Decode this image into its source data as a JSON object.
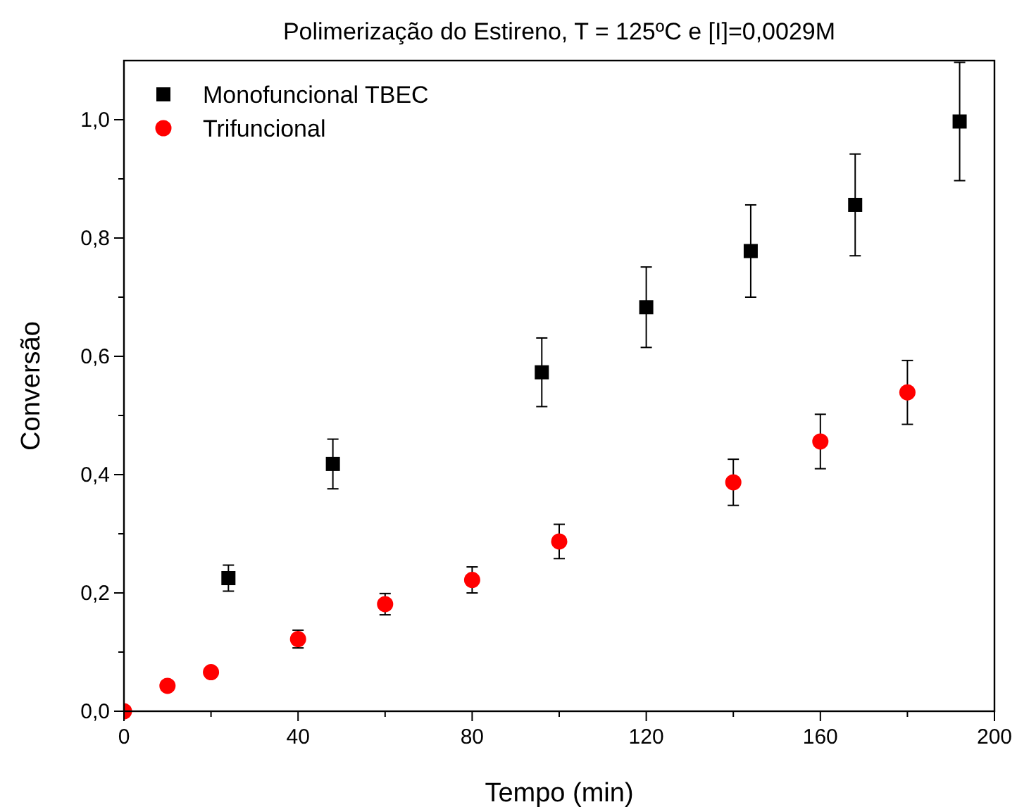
{
  "chart_data": {
    "type": "scatter",
    "title": "Polimerização do Estireno, T = 125ºC e [I]=0,0029M",
    "xlabel": "Tempo (min)",
    "ylabel": "Conversão",
    "xlim": [
      0,
      200
    ],
    "ylim": [
      0,
      1.1
    ],
    "xticks": [
      0,
      {
        "value": 20,
        "label": null
      },
      40,
      {
        "value": 60,
        "label": null
      },
      80,
      {
        "value": 100,
        "label": null
      },
      120,
      {
        "value": 140,
        "label": null
      },
      160,
      {
        "value": 180,
        "label": null
      },
      200
    ],
    "yticks": [
      {
        "value": 0,
        "label": "0,0"
      },
      {
        "value": 0.1,
        "label": null
      },
      {
        "value": 0.2,
        "label": "0,2"
      },
      {
        "value": 0.3,
        "label": null
      },
      {
        "value": 0.4,
        "label": "0,4"
      },
      {
        "value": 0.5,
        "label": null
      },
      {
        "value": 0.6,
        "label": "0,6"
      },
      {
        "value": 0.7,
        "label": null
      },
      {
        "value": 0.8,
        "label": "0,8"
      },
      {
        "value": 0.9,
        "label": null
      },
      {
        "value": 1.0,
        "label": "1,0"
      }
    ],
    "legend": "top left",
    "series": [
      {
        "name": "Monofuncional TBEC",
        "color": "#000000",
        "marker": "square",
        "x": [
          24,
          48,
          96,
          120,
          144,
          168,
          192
        ],
        "values": [
          0.225,
          0.418,
          0.573,
          0.683,
          0.778,
          0.856,
          0.997
        ],
        "errors": [
          0.022,
          0.042,
          0.058,
          0.068,
          0.078,
          0.086,
          0.1
        ]
      },
      {
        "name": "Trifuncional",
        "color": "#ff0000",
        "marker": "circle",
        "x": [
          0,
          10,
          20,
          40,
          60,
          80,
          100,
          140,
          160,
          180
        ],
        "values": [
          0,
          0.043,
          0.066,
          0.122,
          0.181,
          0.222,
          0.287,
          0.387,
          0.456,
          0.539
        ],
        "errors": [
          null,
          null,
          null,
          0.015,
          0.018,
          0.022,
          0.029,
          0.039,
          0.046,
          0.054
        ]
      }
    ]
  }
}
